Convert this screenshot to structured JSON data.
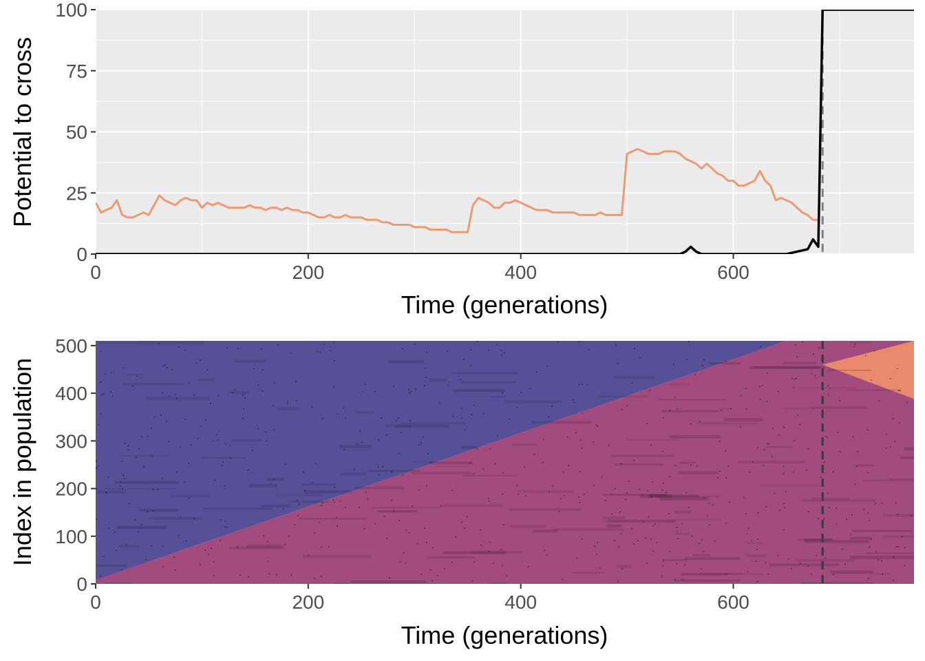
{
  "colors": {
    "panel_bg": "#ebebeb",
    "grid": "#ffffff",
    "orange_line": "#ee9a70",
    "black_line": "#000000",
    "dashed": "#7f7f7f",
    "blue_region": "#565096",
    "magenta_region": "#a24b7e",
    "orange_region": "#e88a6b",
    "tick_text": "#4d4d4d"
  },
  "chart_data": [
    {
      "type": "line",
      "xlabel": "Time (generations)",
      "ylabel": "Potential to cross",
      "xlim": [
        0,
        770
      ],
      "ylim": [
        0,
        100
      ],
      "x_ticks": [
        {
          "value": 0,
          "label": "0"
        },
        {
          "value": 200,
          "label": "200"
        },
        {
          "value": 400,
          "label": "400"
        },
        {
          "value": 600,
          "label": "600"
        }
      ],
      "y_ticks": [
        {
          "value": 0,
          "label": "0"
        },
        {
          "value": 25,
          "label": "25"
        },
        {
          "value": 50,
          "label": "50"
        },
        {
          "value": 75,
          "label": "75"
        },
        {
          "value": 100,
          "label": "100"
        }
      ],
      "vline_x": 684,
      "grid": true,
      "series": [
        {
          "color": "orange",
          "x": [
            0,
            5,
            10,
            15,
            20,
            25,
            30,
            35,
            40,
            45,
            50,
            55,
            60,
            65,
            70,
            75,
            80,
            85,
            90,
            95,
            100,
            105,
            110,
            115,
            120,
            125,
            130,
            135,
            140,
            145,
            150,
            155,
            160,
            165,
            170,
            175,
            180,
            185,
            190,
            195,
            200,
            205,
            210,
            215,
            220,
            225,
            230,
            235,
            240,
            245,
            250,
            255,
            260,
            265,
            270,
            275,
            280,
            285,
            290,
            295,
            300,
            305,
            310,
            315,
            320,
            325,
            330,
            335,
            340,
            345,
            350,
            355,
            360,
            365,
            370,
            375,
            380,
            385,
            390,
            395,
            400,
            405,
            410,
            415,
            420,
            425,
            430,
            435,
            440,
            445,
            450,
            455,
            460,
            465,
            470,
            475,
            480,
            485,
            490,
            495,
            500,
            505,
            510,
            515,
            520,
            525,
            530,
            535,
            540,
            545,
            550,
            555,
            560,
            565,
            570,
            575,
            580,
            585,
            590,
            595,
            600,
            605,
            610,
            615,
            620,
            625,
            630,
            635,
            640,
            645,
            650,
            655,
            660,
            665,
            670,
            675,
            680
          ],
          "y": [
            21,
            17,
            18,
            19,
            22,
            16,
            15,
            15,
            16,
            17,
            16,
            20,
            24,
            22,
            21,
            20,
            22,
            23,
            22,
            22,
            19,
            21,
            20,
            21,
            20,
            19,
            19,
            19,
            19,
            20,
            19,
            19,
            18,
            19,
            19,
            18,
            19,
            18,
            18,
            17,
            17,
            16,
            15,
            15,
            16,
            15,
            15,
            16,
            15,
            15,
            15,
            14,
            14,
            14,
            13,
            13,
            12,
            12,
            12,
            12,
            11,
            11,
            11,
            10,
            10,
            10,
            10,
            9,
            9,
            9,
            9,
            20,
            23,
            22,
            21,
            19,
            19,
            21,
            21,
            22,
            21,
            20,
            19,
            18,
            18,
            18,
            17,
            17,
            17,
            17,
            17,
            16,
            16,
            16,
            16,
            17,
            16,
            16,
            16,
            16,
            41,
            42,
            43,
            42,
            41,
            41,
            41,
            42,
            42,
            42,
            41,
            39,
            38,
            37,
            35,
            37,
            35,
            33,
            32,
            30,
            30,
            28,
            28,
            29,
            30,
            34,
            30,
            28,
            22,
            23,
            22,
            21,
            19,
            17,
            16,
            14,
            14
          ]
        },
        {
          "color": "black",
          "x": [
            0,
            20,
            40,
            60,
            80,
            100,
            120,
            140,
            160,
            180,
            200,
            220,
            240,
            260,
            280,
            300,
            320,
            340,
            360,
            380,
            400,
            420,
            440,
            460,
            480,
            500,
            520,
            540,
            550,
            555,
            560,
            565,
            570,
            590,
            610,
            630,
            650,
            660,
            670,
            675,
            680,
            684,
            690,
            700,
            720,
            740,
            760,
            770
          ],
          "y": [
            0,
            0,
            0,
            0,
            0,
            0,
            0,
            0,
            0,
            0,
            0,
            0,
            0,
            0,
            0,
            0,
            0,
            0,
            0,
            0,
            0,
            0,
            0,
            0,
            0,
            0,
            0,
            0,
            0,
            1,
            3,
            1,
            0,
            0,
            0,
            0,
            0,
            1,
            2,
            6,
            3,
            100,
            100,
            100,
            100,
            100,
            100,
            100
          ]
        }
      ]
    },
    {
      "type": "area",
      "xlabel": "Time (generations)",
      "ylabel": "Index in population",
      "xlim": [
        0,
        770
      ],
      "ylim": [
        0,
        510
      ],
      "x_ticks": [
        {
          "value": 0,
          "label": "0"
        },
        {
          "value": 200,
          "label": "200"
        },
        {
          "value": 400,
          "label": "400"
        },
        {
          "value": 600,
          "label": "600"
        }
      ],
      "y_ticks": [
        {
          "value": 0,
          "label": "0"
        },
        {
          "value": 100,
          "label": "100"
        },
        {
          "value": 200,
          "label": "200"
        },
        {
          "value": 300,
          "label": "300"
        },
        {
          "value": 400,
          "label": "400"
        },
        {
          "value": 500,
          "label": "500"
        }
      ],
      "vline_x": 684,
      "regions": [
        {
          "color": "blue",
          "points": [
            [
              0,
              510
            ],
            [
              0,
              8
            ],
            [
              650,
              510
            ]
          ]
        },
        {
          "color": "magenta",
          "points": [
            [
              0,
              0
            ],
            [
              0,
              8
            ],
            [
              650,
              510
            ],
            [
              770,
              510
            ],
            [
              770,
              0
            ]
          ]
        },
        {
          "color": "orange",
          "points": [
            [
              684,
              460
            ],
            [
              770,
              510
            ],
            [
              770,
              388
            ]
          ]
        }
      ]
    }
  ]
}
